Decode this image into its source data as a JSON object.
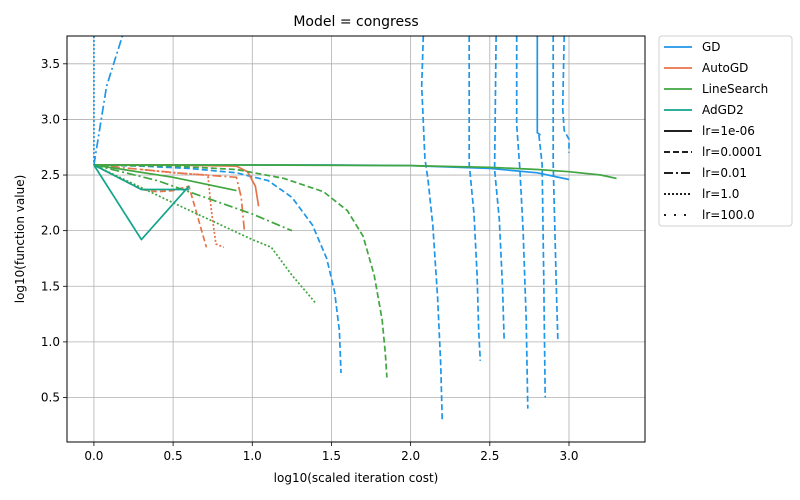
{
  "chart_data": {
    "type": "line",
    "title": "Model = congress",
    "xlabel": "log10(scaled iteration cost)",
    "ylabel": "log10(function value)",
    "xlim": [
      -0.17,
      3.48
    ],
    "ylim": [
      0.1,
      3.75
    ],
    "xticks": [
      0.0,
      0.5,
      1.0,
      1.5,
      2.0,
      2.5,
      3.0
    ],
    "yticks": [
      0.5,
      1.0,
      1.5,
      2.0,
      2.5,
      3.0,
      3.5
    ],
    "xtick_labels": [
      "0.0",
      "0.5",
      "1.0",
      "1.5",
      "2.0",
      "2.5",
      "3.0"
    ],
    "ytick_labels": [
      "0.5",
      "1.0",
      "1.5",
      "2.0",
      "2.5",
      "3.0",
      "3.5"
    ],
    "grid": true,
    "legend_position": "outside-right",
    "legend": {
      "methods": [
        {
          "name": "GD",
          "color": "#1f96e8"
        },
        {
          "name": "AutoGD",
          "color": "#e8734a"
        },
        {
          "name": "LineSearch",
          "color": "#3fa640"
        },
        {
          "name": "AdGD2",
          "color": "#12a58c"
        }
      ],
      "learning_rates": [
        {
          "name": "lr=1e-06",
          "style": "solid"
        },
        {
          "name": "lr=0.0001",
          "style": "dashed"
        },
        {
          "name": "lr=0.01",
          "style": "dashdot"
        },
        {
          "name": "lr=1.0",
          "style": "dotted"
        },
        {
          "name": "lr=100.0",
          "style": "loosely-dashed"
        }
      ]
    },
    "series": [
      {
        "method": "GD",
        "lr": "lr=1e-06",
        "color": "#1f96e8",
        "style": "solid",
        "points": [
          [
            0,
            2.59
          ],
          [
            1.0,
            2.59
          ],
          [
            1.5,
            2.59
          ],
          [
            2.0,
            2.585
          ],
          [
            2.5,
            2.56
          ],
          [
            2.8,
            2.52
          ],
          [
            3.0,
            2.46
          ]
        ]
      },
      {
        "method": "GD",
        "lr": "lr=1e-06",
        "color": "#1f96e8",
        "style": "solid",
        "points": [
          [
            2.8,
            3.75
          ],
          [
            2.8,
            2.88
          ],
          [
            2.82,
            2.86
          ]
        ]
      },
      {
        "method": "GD",
        "lr": "lr=0.0001",
        "color": "#1f96e8",
        "style": "dashed",
        "points": [
          [
            0,
            2.59
          ],
          [
            0.3,
            2.58
          ],
          [
            0.6,
            2.56
          ],
          [
            0.9,
            2.52
          ],
          [
            1.1,
            2.45
          ],
          [
            1.25,
            2.3
          ],
          [
            1.38,
            2.05
          ],
          [
            1.47,
            1.75
          ],
          [
            1.52,
            1.45
          ],
          [
            1.55,
            1.1
          ],
          [
            1.56,
            0.72
          ]
        ]
      },
      {
        "method": "GD",
        "lr": "lr=0.0001",
        "color": "#1f96e8",
        "style": "dashed",
        "points": [
          [
            2.08,
            3.75
          ],
          [
            2.07,
            3.3
          ],
          [
            2.09,
            2.65
          ],
          [
            2.11,
            2.45
          ],
          [
            2.14,
            2.05
          ],
          [
            2.17,
            1.4
          ],
          [
            2.19,
            0.8
          ],
          [
            2.2,
            0.28
          ]
        ]
      },
      {
        "method": "GD",
        "lr": "lr=0.0001",
        "color": "#1f96e8",
        "style": "dashed",
        "points": [
          [
            2.37,
            3.75
          ],
          [
            2.37,
            2.6
          ],
          [
            2.4,
            2.15
          ],
          [
            2.42,
            1.6
          ],
          [
            2.43,
            1.1
          ],
          [
            2.44,
            0.83
          ]
        ]
      },
      {
        "method": "GD",
        "lr": "lr=0.0001",
        "color": "#1f96e8",
        "style": "dashed",
        "points": [
          [
            2.54,
            3.75
          ],
          [
            2.53,
            2.55
          ],
          [
            2.56,
            2.1
          ],
          [
            2.58,
            1.5
          ],
          [
            2.59,
            1.03
          ]
        ]
      },
      {
        "method": "GD",
        "lr": "lr=0.0001",
        "color": "#1f96e8",
        "style": "dashed",
        "points": [
          [
            2.67,
            3.75
          ],
          [
            2.67,
            2.95
          ],
          [
            2.69,
            2.55
          ],
          [
            2.71,
            2.0
          ],
          [
            2.73,
            1.2
          ],
          [
            2.74,
            0.4
          ]
        ]
      },
      {
        "method": "GD",
        "lr": "lr=0.0001",
        "color": "#1f96e8",
        "style": "dashed",
        "points": [
          [
            2.81,
            2.86
          ],
          [
            2.83,
            2.6
          ],
          [
            2.84,
            1.6
          ],
          [
            2.85,
            0.5
          ]
        ]
      },
      {
        "method": "GD",
        "lr": "lr=0.0001",
        "color": "#1f96e8",
        "style": "dashed",
        "points": [
          [
            2.9,
            3.75
          ],
          [
            2.9,
            2.6
          ],
          [
            2.92,
            1.5
          ],
          [
            2.93,
            1.0
          ]
        ]
      },
      {
        "method": "GD",
        "lr": "lr=0.0001",
        "color": "#1f96e8",
        "style": "dashed",
        "points": [
          [
            2.97,
            3.75
          ],
          [
            2.96,
            3.1
          ],
          [
            2.97,
            2.9
          ],
          [
            3.0,
            2.82
          ],
          [
            3.0,
            2.7
          ]
        ]
      },
      {
        "method": "GD",
        "lr": "lr=0.01",
        "color": "#1f96e8",
        "style": "dashdot",
        "points": [
          [
            0,
            2.59
          ],
          [
            0.08,
            3.3
          ],
          [
            0.18,
            3.75
          ]
        ]
      },
      {
        "method": "GD",
        "lr": "lr=1.0",
        "color": "#1f96e8",
        "style": "dotted",
        "points": [
          [
            0,
            3.75
          ],
          [
            0,
            2.59
          ]
        ]
      },
      {
        "method": "AutoGD",
        "lr": "lr=1e-06",
        "color": "#e8734a",
        "style": "solid",
        "points": [
          [
            0,
            2.59
          ],
          [
            0.5,
            2.59
          ],
          [
            0.9,
            2.58
          ],
          [
            0.97,
            2.53
          ],
          [
            1.02,
            2.4
          ],
          [
            1.04,
            2.22
          ]
        ]
      },
      {
        "method": "AutoGD",
        "lr": "lr=0.0001",
        "color": "#e8734a",
        "style": "dashed",
        "points": [
          [
            0,
            2.59
          ],
          [
            0.15,
            2.48
          ],
          [
            0.3,
            2.37
          ],
          [
            0.4,
            2.35
          ],
          [
            0.5,
            2.36
          ],
          [
            0.6,
            2.4
          ],
          [
            0.64,
            2.2
          ],
          [
            0.68,
            2.0
          ],
          [
            0.71,
            1.85
          ]
        ]
      },
      {
        "method": "AutoGD",
        "lr": "lr=0.01",
        "color": "#e8734a",
        "style": "dashdot",
        "points": [
          [
            0,
            2.59
          ],
          [
            0.3,
            2.55
          ],
          [
            0.6,
            2.51
          ],
          [
            0.9,
            2.48
          ],
          [
            0.93,
            2.3
          ],
          [
            0.95,
            2.0
          ]
        ]
      },
      {
        "method": "AutoGD",
        "lr": "lr=1.0",
        "color": "#e8734a",
        "style": "dotted",
        "points": [
          [
            0.3,
            2.55
          ],
          [
            0.5,
            2.52
          ],
          [
            0.72,
            2.5
          ],
          [
            0.74,
            2.2
          ],
          [
            0.77,
            1.88
          ],
          [
            0.82,
            1.85
          ]
        ]
      },
      {
        "method": "AutoGD",
        "lr": "lr=100.0",
        "color": "#e8734a",
        "style": "loosely-dashed",
        "points": [
          [
            0.52,
            2.38
          ],
          [
            0.55,
            2.36
          ],
          [
            0.6,
            2.38
          ]
        ]
      },
      {
        "method": "LineSearch",
        "lr": "lr=1e-06",
        "color": "#3fa640",
        "style": "solid",
        "points": [
          [
            0,
            2.59
          ],
          [
            1.0,
            2.59
          ],
          [
            2.0,
            2.585
          ],
          [
            2.5,
            2.57
          ],
          [
            2.8,
            2.55
          ],
          [
            3.0,
            2.53
          ],
          [
            3.2,
            2.5
          ],
          [
            3.3,
            2.47
          ]
        ]
      },
      {
        "method": "LineSearch",
        "lr": "lr=0.0001",
        "color": "#3fa640",
        "style": "dashed",
        "points": [
          [
            0,
            2.59
          ],
          [
            0.5,
            2.58
          ],
          [
            0.9,
            2.55
          ],
          [
            1.2,
            2.47
          ],
          [
            1.45,
            2.35
          ],
          [
            1.6,
            2.18
          ],
          [
            1.7,
            1.95
          ],
          [
            1.77,
            1.6
          ],
          [
            1.82,
            1.2
          ],
          [
            1.84,
            0.9
          ],
          [
            1.85,
            0.68
          ]
        ]
      },
      {
        "method": "LineSearch",
        "lr": "lr=0.01",
        "color": "#3fa640",
        "style": "solid",
        "points": [
          [
            0,
            2.59
          ],
          [
            0.5,
            2.48
          ],
          [
            0.9,
            2.36
          ]
        ]
      },
      {
        "method": "LineSearch",
        "lr": "lr=0.01",
        "color": "#3fa640",
        "style": "dashdot",
        "points": [
          [
            0,
            2.59
          ],
          [
            0.4,
            2.45
          ],
          [
            0.7,
            2.3
          ],
          [
            1.0,
            2.15
          ],
          [
            1.25,
            2.0
          ]
        ]
      },
      {
        "method": "LineSearch",
        "lr": "lr=1.0",
        "color": "#3fa640",
        "style": "dotted",
        "points": [
          [
            0,
            2.59
          ],
          [
            0.5,
            2.25
          ],
          [
            1.0,
            1.92
          ],
          [
            1.12,
            1.85
          ],
          [
            1.25,
            1.6
          ],
          [
            1.4,
            1.35
          ]
        ]
      },
      {
        "method": "AdGD2",
        "lr": "lr=1e-06",
        "color": "#12a58c",
        "style": "solid",
        "points": [
          [
            0,
            2.59
          ],
          [
            0.3,
            1.92
          ],
          [
            0.6,
            2.4
          ]
        ]
      },
      {
        "method": "AdGD2",
        "lr": "lr=1e-06",
        "color": "#12a58c",
        "style": "solid",
        "points": [
          [
            0,
            2.59
          ],
          [
            0.3,
            2.37
          ],
          [
            0.6,
            2.37
          ]
        ]
      }
    ]
  }
}
